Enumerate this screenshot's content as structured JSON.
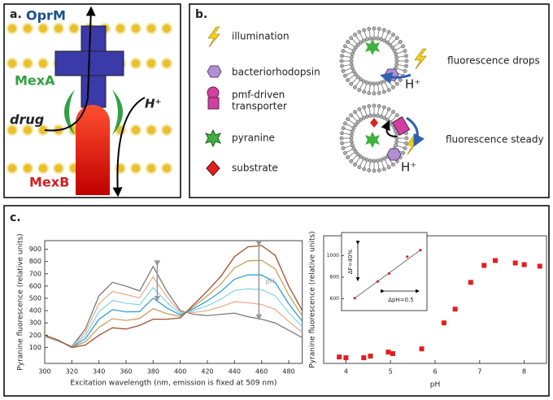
{
  "panel_a": {
    "label": "a.",
    "oprm": "OprM",
    "mexa": "MexA",
    "drug": "drug",
    "proton": "H⁺",
    "mexb": "MexB"
  },
  "panel_b": {
    "label": "b.",
    "illumination": "illumination",
    "bacteriorhodopsin": "bacteriorhodopsin",
    "transporter": [
      "pmf-driven",
      "transporter"
    ],
    "pyranine": "pyranine",
    "substrate": "substrate",
    "drops": "fluorescence drops",
    "steady": "fluorescence steady",
    "proton": "H⁺"
  },
  "panel_c": {
    "label": "c."
  },
  "chart_data": [
    {
      "type": "line",
      "xlabel": "Excitation wavelength (nm, emission is fixed at 509 nm)",
      "ylabel": "Pyranine fluorescence (relative units)",
      "annotation": "pH",
      "x": [
        300,
        310,
        320,
        330,
        340,
        350,
        360,
        370,
        380,
        390,
        400,
        410,
        420,
        430,
        440,
        450,
        460,
        470,
        480,
        490
      ],
      "xlim": [
        300,
        490
      ],
      "ylim": [
        -30,
        970
      ],
      "xticks": [
        300,
        320,
        340,
        360,
        380,
        400,
        420,
        440,
        460,
        480
      ],
      "yticks": [
        100,
        200,
        300,
        400,
        500,
        600,
        700,
        800,
        900
      ],
      "series": [
        {
          "color": "#7a7a7a",
          "values": [
            190,
            150,
            110,
            250,
            520,
            630,
            600,
            560,
            760,
            560,
            400,
            370,
            360,
            370,
            380,
            350,
            330,
            300,
            240,
            180
          ]
        },
        {
          "color": "#e8b090",
          "values": [
            192,
            152,
            108,
            224,
            456,
            556,
            530,
            504,
            674,
            514,
            388,
            386,
            400,
            432,
            472,
            464,
            450,
            410,
            312,
            224
          ]
        },
        {
          "color": "#8fd6e6",
          "values": [
            194,
            154,
            106,
            198,
            392,
            482,
            460,
            448,
            588,
            468,
            376,
            402,
            440,
            494,
            564,
            578,
            570,
            520,
            384,
            268
          ]
        },
        {
          "color": "#2fa0d8",
          "values": [
            196,
            156,
            104,
            172,
            328,
            408,
            390,
            392,
            502,
            422,
            364,
            418,
            480,
            556,
            656,
            692,
            690,
            630,
            456,
            312
          ]
        },
        {
          "color": "#c8a060",
          "values": [
            198,
            158,
            102,
            146,
            264,
            334,
            320,
            336,
            416,
            376,
            352,
            434,
            520,
            618,
            748,
            806,
            810,
            740,
            528,
            356
          ]
        },
        {
          "color": "#a05030",
          "values": [
            200,
            160,
            100,
            120,
            200,
            260,
            250,
            280,
            330,
            330,
            340,
            450,
            560,
            680,
            840,
            920,
            930,
            850,
            600,
            400
          ]
        }
      ]
    },
    {
      "type": "scatter",
      "xlabel": "pH",
      "ylabel": "Pyranine fluorescence (relative units)",
      "x": [
        3.85,
        4.0,
        4.4,
        4.55,
        4.95,
        5.05,
        5.7,
        6.2,
        6.45,
        6.8,
        7.1,
        7.35,
        7.8,
        8.0,
        8.35
      ],
      "values": [
        58,
        51,
        51,
        66,
        102,
        88,
        131,
        365,
        489,
        730,
        883,
        927,
        905,
        890,
        876
      ],
      "color": "#e02020",
      "xlim": [
        3.5,
        8.5
      ],
      "ylim": [
        0,
        1150
      ],
      "xticks": [
        4,
        5,
        6,
        7,
        8
      ],
      "inset": {
        "x": [
          3.7,
          4.4,
          4.75,
          5.3,
          5.7
        ],
        "values": [
          605,
          760,
          835,
          990,
          1052
        ],
        "xlim": [
          3.3,
          5.9
        ],
        "ylim": [
          490,
          1215
        ],
        "yticks": [
          600,
          800,
          1000
        ],
        "annotations": [
          "ΔF=40%",
          "ΔpH=0.5"
        ]
      }
    }
  ]
}
